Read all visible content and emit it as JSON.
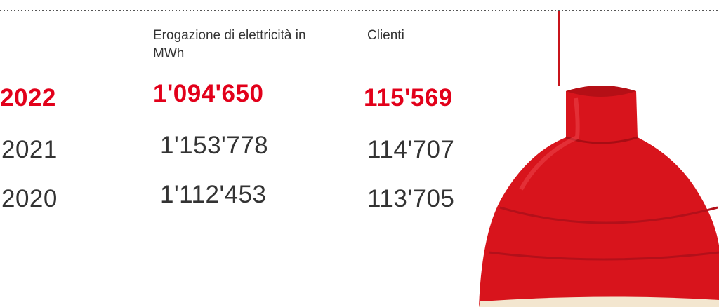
{
  "table": {
    "headers": [
      "Erogazione di elettricità in MWh",
      "Clienti"
    ],
    "rows": [
      [
        "2022",
        "1'094'650",
        "115'569"
      ],
      [
        "2021",
        "1'153'778",
        "114'707"
      ],
      [
        "2020",
        "1'112'453",
        "113'705"
      ]
    ]
  }
}
